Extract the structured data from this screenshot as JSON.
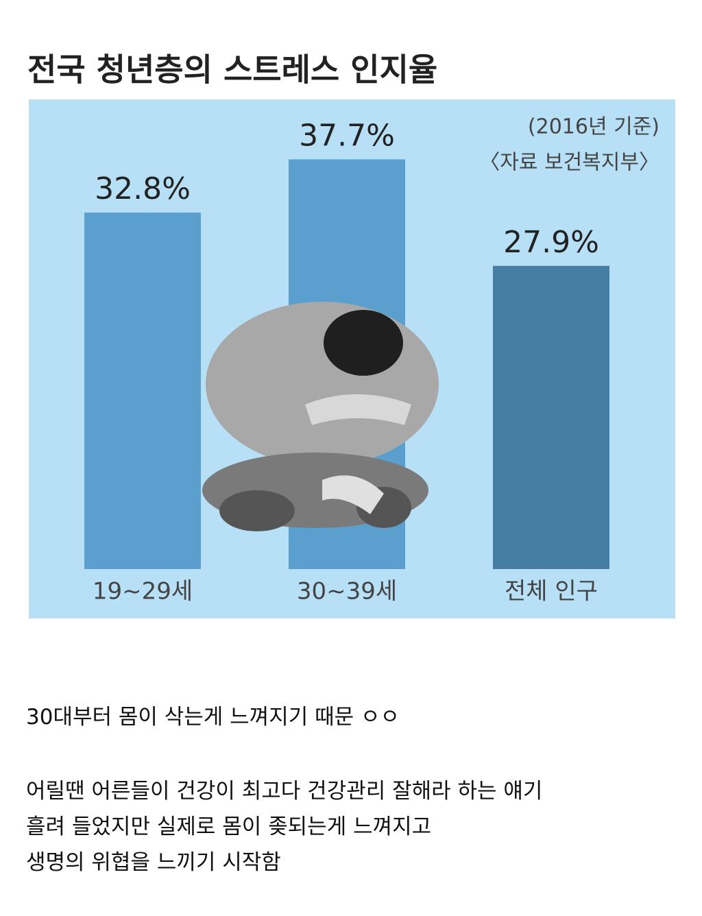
{
  "chart_data": {
    "type": "bar",
    "title": "전국 청년층의 스트레스 인지율",
    "annotations": [
      "(2016년 기준)",
      "〈자료 보건복지부〉"
    ],
    "categories": [
      "19~29세",
      "30~39세",
      "전체 인구"
    ],
    "values": [
      32.8,
      37.7,
      27.9
    ],
    "value_labels": [
      "32.8%",
      "37.7%",
      "27.9%"
    ],
    "colors": [
      "#5b9fcf",
      "#5b9fcf",
      "#467ea3"
    ]
  },
  "post": {
    "lines": [
      "30대부터 몸이 삭는게 느껴지기 때문 ㅇㅇ",
      "어릴땐 어른들이 건강이 최고다 건강관리 잘해라 하는 얘기",
      "흘려 들었지만 실제로 몸이 좆되는게 느껴지고",
      "생명의 위협을 느끼기 시작함"
    ]
  }
}
